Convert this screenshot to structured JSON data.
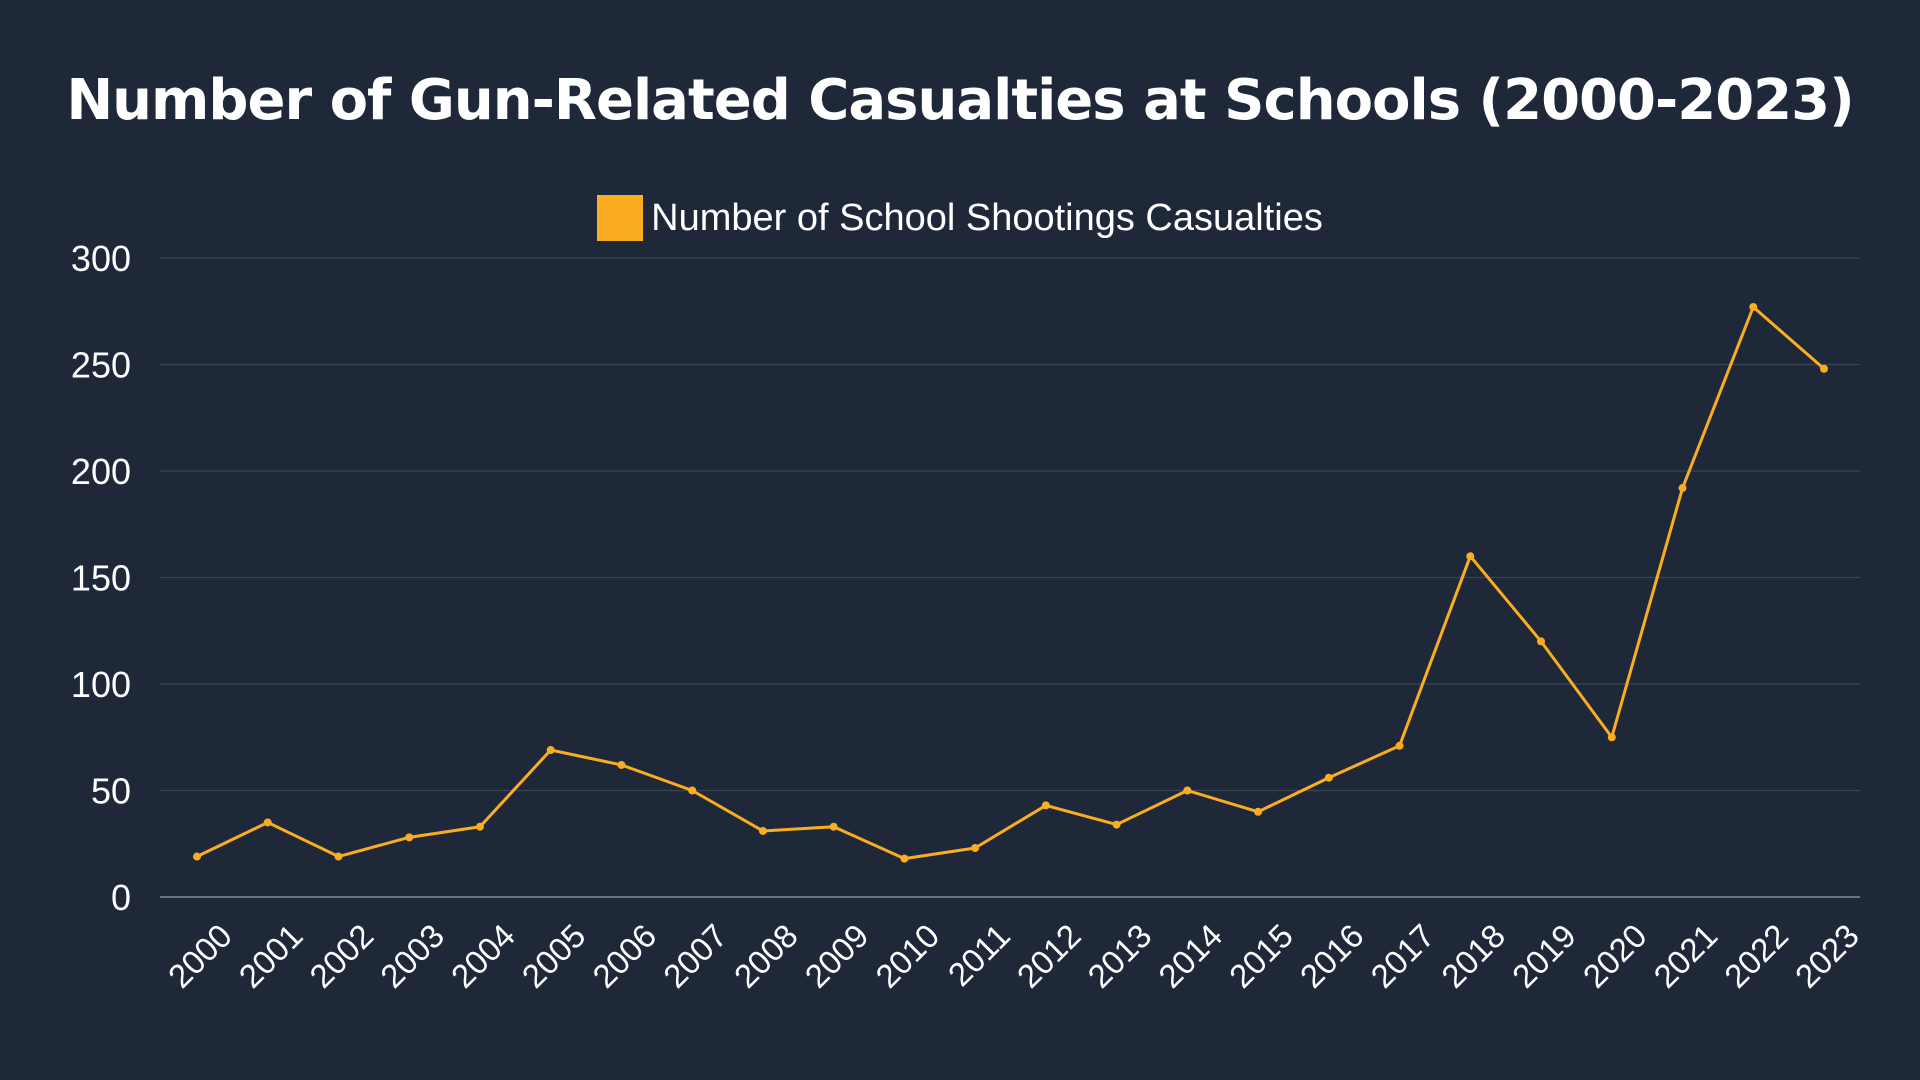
{
  "chart_data": {
    "type": "line",
    "title": "Number of Gun-Related Casualties at Schools (2000-2023)",
    "xlabel": "",
    "ylabel": "",
    "categories": [
      "2000",
      "2001",
      "2002",
      "2003",
      "2004",
      "2005",
      "2006",
      "2007",
      "2008",
      "2009",
      "2010",
      "2011",
      "2012",
      "2013",
      "2014",
      "2015",
      "2016",
      "2017",
      "2018",
      "2019",
      "2020",
      "2021",
      "2022",
      "2023"
    ],
    "series": [
      {
        "name": "Number of School Shootings Casualties",
        "color": "#fbad22",
        "values": [
          19,
          35,
          19,
          28,
          33,
          69,
          62,
          50,
          31,
          33,
          18,
          23,
          43,
          34,
          50,
          40,
          56,
          71,
          160,
          120,
          75,
          192,
          277,
          248
        ]
      }
    ],
    "ylim": [
      0,
      300
    ],
    "yticks": [
      0,
      50,
      100,
      150,
      200,
      250,
      300
    ],
    "grid": true,
    "legend_position": "top-center",
    "colors": {
      "background": "#1f2838",
      "grid": "#3a4455",
      "text": "#ffffff",
      "axis": "#6b7380"
    }
  }
}
